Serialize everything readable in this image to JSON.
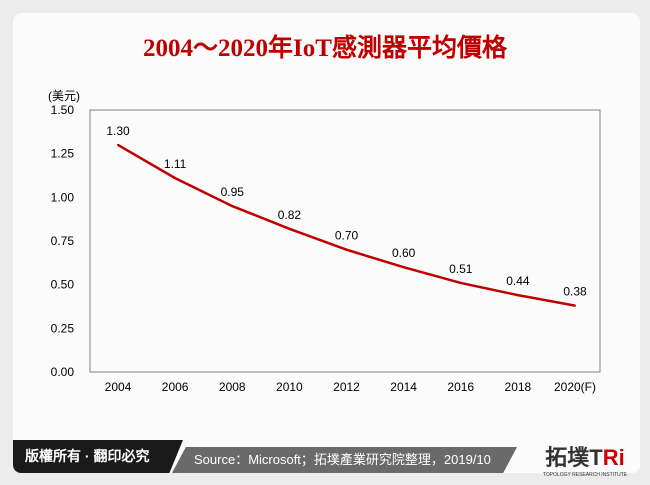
{
  "title": "2004～2020年IoT感測器平均價格",
  "chart_data": {
    "type": "line",
    "title": "2004～2020年IoT感測器平均價格",
    "ylabel": "(美元)",
    "categories": [
      "2004",
      "2006",
      "2008",
      "2010",
      "2012",
      "2014",
      "2016",
      "2018",
      "2020(F)"
    ],
    "values": [
      1.3,
      1.11,
      0.95,
      0.82,
      0.7,
      0.6,
      0.51,
      0.44,
      0.38
    ],
    "data_labels": [
      "1.30",
      "1.11",
      "0.95",
      "0.82",
      "0.70",
      "0.60",
      "0.51",
      "0.44",
      "0.38"
    ],
    "yticks": [
      "0.00",
      "0.25",
      "0.50",
      "0.75",
      "1.00",
      "1.25",
      "1.50"
    ],
    "ylim": [
      0,
      1.5
    ],
    "grid": false,
    "line_color": "#c00000"
  },
  "footer": {
    "copyright": "版權所有 · 翻印必究",
    "source": "Source：Microsoft；拓墣產業研究院整理，2019/10",
    "logo_text": "拓墣TRi",
    "logo_sub": "TOPOLOGY RESEARCH INSTITUTE"
  }
}
